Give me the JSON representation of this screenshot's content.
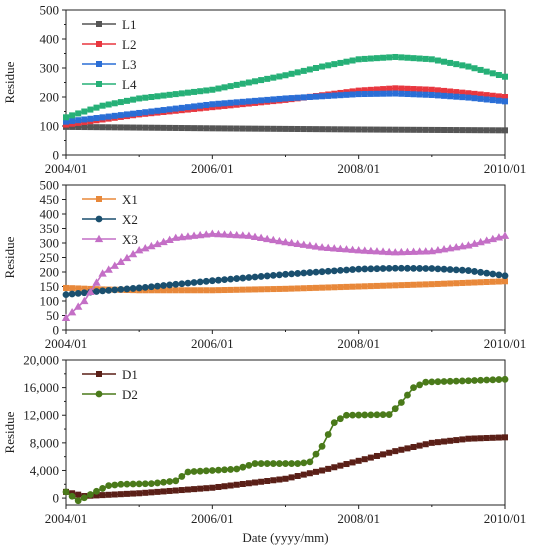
{
  "chart_data": [
    {
      "type": "line",
      "ylabel": "Residue",
      "xlabel": "",
      "x_ticks": [
        "2004/01",
        "2006/01",
        "2008/01",
        "2010/01"
      ],
      "y_ticks": [
        "0",
        "100",
        "200",
        "300",
        "400",
        "500"
      ],
      "xlim": [
        2004.0,
        2010.0
      ],
      "ylim": [
        0,
        500
      ],
      "legend_position": "top-left",
      "series": [
        {
          "name": "L1",
          "color": "#555555",
          "marker": "square",
          "points": [
            [
              2004.0,
              97
            ],
            [
              2006.0,
              92
            ],
            [
              2008.0,
              88
            ],
            [
              2010.0,
              85
            ]
          ]
        },
        {
          "name": "L2",
          "color": "#e8373f",
          "marker": "square",
          "points": [
            [
              2004.0,
              105
            ],
            [
              2005.0,
              140
            ],
            [
              2006.0,
              165
            ],
            [
              2007.0,
              190
            ],
            [
              2008.0,
              222
            ],
            [
              2008.5,
              230
            ],
            [
              2009.0,
              225
            ],
            [
              2009.5,
              213
            ],
            [
              2010.0,
              200
            ]
          ]
        },
        {
          "name": "L3",
          "color": "#2a6ed6",
          "marker": "square",
          "points": [
            [
              2004.0,
              115
            ],
            [
              2005.0,
              145
            ],
            [
              2006.0,
              175
            ],
            [
              2007.0,
              195
            ],
            [
              2008.0,
              210
            ],
            [
              2008.5,
              212
            ],
            [
              2009.0,
              207
            ],
            [
              2009.5,
              198
            ],
            [
              2010.0,
              185
            ]
          ]
        },
        {
          "name": "L4",
          "color": "#26b077",
          "marker": "square",
          "points": [
            [
              2004.0,
              130
            ],
            [
              2004.5,
              170
            ],
            [
              2005.0,
              195
            ],
            [
              2006.0,
              225
            ],
            [
              2007.0,
              275
            ],
            [
              2007.5,
              305
            ],
            [
              2008.0,
              330
            ],
            [
              2008.5,
              338
            ],
            [
              2009.0,
              330
            ],
            [
              2009.5,
              305
            ],
            [
              2010.0,
              270
            ]
          ]
        }
      ]
    },
    {
      "type": "line",
      "ylabel": "Residue",
      "xlabel": "",
      "x_ticks": [
        "2004/01",
        "2006/01",
        "2008/01",
        "2010/01"
      ],
      "y_ticks": [
        "0",
        "50",
        "100",
        "150",
        "200",
        "250",
        "300",
        "350",
        "400",
        "450",
        "500"
      ],
      "xlim": [
        2004.0,
        2010.0
      ],
      "ylim": [
        0,
        500
      ],
      "legend_position": "top-left",
      "series": [
        {
          "name": "X1",
          "color": "#e8883a",
          "marker": "square",
          "points": [
            [
              2004.0,
              145
            ],
            [
              2004.5,
              140
            ],
            [
              2005.0,
              137
            ],
            [
              2006.0,
              137
            ],
            [
              2007.0,
              142
            ],
            [
              2008.0,
              150
            ],
            [
              2009.0,
              158
            ],
            [
              2010.0,
              168
            ]
          ]
        },
        {
          "name": "X2",
          "color": "#1a4f6e",
          "marker": "circle",
          "points": [
            [
              2004.0,
              122
            ],
            [
              2004.5,
              135
            ],
            [
              2005.0,
              145
            ],
            [
              2006.0,
              170
            ],
            [
              2007.0,
              192
            ],
            [
              2008.0,
              210
            ],
            [
              2008.5,
              213
            ],
            [
              2009.0,
              212
            ],
            [
              2009.5,
              205
            ],
            [
              2010.0,
              187
            ]
          ]
        },
        {
          "name": "X3",
          "color": "#c46fc6",
          "marker": "triangle",
          "points": [
            [
              2004.0,
              42
            ],
            [
              2004.25,
              100
            ],
            [
              2004.5,
              195
            ],
            [
              2005.0,
              275
            ],
            [
              2005.5,
              318
            ],
            [
              2006.0,
              332
            ],
            [
              2006.5,
              325
            ],
            [
              2007.0,
              303
            ],
            [
              2007.5,
              285
            ],
            [
              2008.0,
              275
            ],
            [
              2008.5,
              268
            ],
            [
              2009.0,
              272
            ],
            [
              2009.5,
              292
            ],
            [
              2010.0,
              325
            ]
          ]
        }
      ]
    },
    {
      "type": "line",
      "ylabel": "Residue",
      "xlabel": "Date (yyyy/mm)",
      "x_ticks": [
        "2004/01",
        "2006/01",
        "2008/01",
        "2010/01"
      ],
      "y_ticks": [
        "0",
        "4,000",
        "8,000",
        "12,000",
        "16,000",
        "20,000"
      ],
      "xlim": [
        2004.0,
        2010.0
      ],
      "ylim": [
        -1000,
        20000
      ],
      "legend_position": "top-left",
      "series": [
        {
          "name": "D1",
          "color": "#5a1f17",
          "marker": "square",
          "points": [
            [
              2004.0,
              900
            ],
            [
              2004.25,
              300
            ],
            [
              2005.0,
              700
            ],
            [
              2006.0,
              1500
            ],
            [
              2007.0,
              2800
            ],
            [
              2007.5,
              4000
            ],
            [
              2008.0,
              5400
            ],
            [
              2008.5,
              6800
            ],
            [
              2009.0,
              8000
            ],
            [
              2009.5,
              8600
            ],
            [
              2010.0,
              8800
            ]
          ]
        },
        {
          "name": "D2",
          "color": "#4a7a1a",
          "marker": "circle",
          "points": [
            [
              2004.0,
              900
            ],
            [
              2004.17,
              -400
            ],
            [
              2004.42,
              1000
            ],
            [
              2004.58,
              1800
            ],
            [
              2004.75,
              2000
            ],
            [
              2005.17,
              2100
            ],
            [
              2005.5,
              2500
            ],
            [
              2005.67,
              3800
            ],
            [
              2006.0,
              4000
            ],
            [
              2006.33,
              4200
            ],
            [
              2006.58,
              5000
            ],
            [
              2007.17,
              5000
            ],
            [
              2007.33,
              5200
            ],
            [
              2007.5,
              7500
            ],
            [
              2007.67,
              11000
            ],
            [
              2007.83,
              12000
            ],
            [
              2008.42,
              12100
            ],
            [
              2008.58,
              13800
            ],
            [
              2008.75,
              16000
            ],
            [
              2008.92,
              16800
            ],
            [
              2009.5,
              17000
            ],
            [
              2010.0,
              17200
            ]
          ]
        }
      ]
    }
  ]
}
